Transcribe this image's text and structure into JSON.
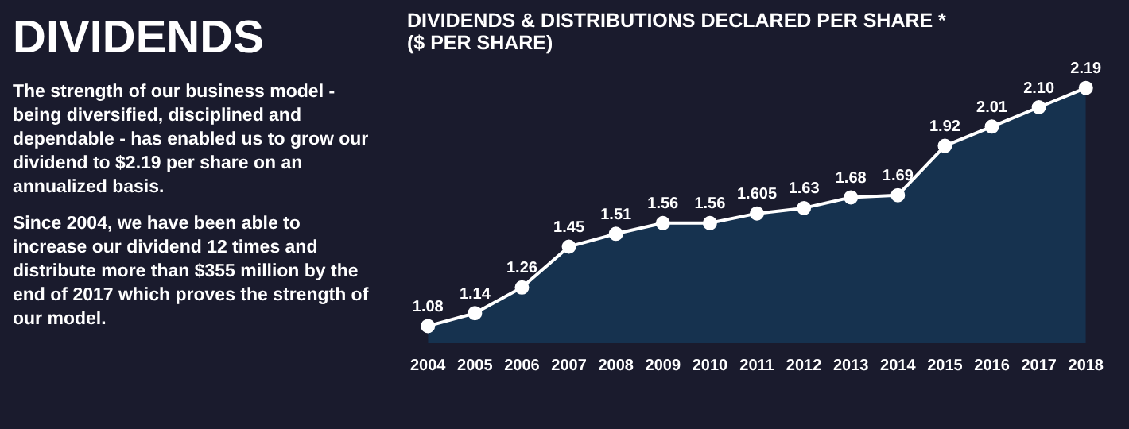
{
  "chart_data": [
    {
      "type": "other",
      "title": "DIVIDENDS",
      "annotations": [
        "The strength of our business model - being diversified, disciplined and dependable - has enabled us to grow our dividend to $2.19 per share on an annualized basis.",
        "Since 2004, we have been able to increase our dividend 12 times and distribute more than $355 million by the end of 2017 which proves the strength of our model."
      ]
    },
    {
      "type": "area",
      "title": "DIVIDENDS & DISTRIBUTIONS DECLARED PER SHARE *",
      "subtitle": "($ PER SHARE)",
      "categories": [
        "2004",
        "2005",
        "2006",
        "2007",
        "2008",
        "2009",
        "2010",
        "2011",
        "2012",
        "2013",
        "2014",
        "2015",
        "2016",
        "2017",
        "2018"
      ],
      "series": [
        {
          "color": "#16324f",
          "values": [
            1.08,
            1.14,
            1.26,
            1.45,
            1.51,
            1.56,
            1.56,
            1.605,
            1.63,
            1.68,
            1.69,
            1.92,
            2.01,
            2.1,
            2.19
          ],
          "value_labels": [
            "1.08",
            "1.14",
            "1.26",
            "1.45",
            "1.51",
            "1.56",
            "1.56",
            "1.605",
            "1.63",
            "1.68",
            "1.69",
            "1.92",
            "2.01",
            "2.10",
            "2.19"
          ]
        }
      ],
      "marker": "circle",
      "legend": false
    }
  ]
}
